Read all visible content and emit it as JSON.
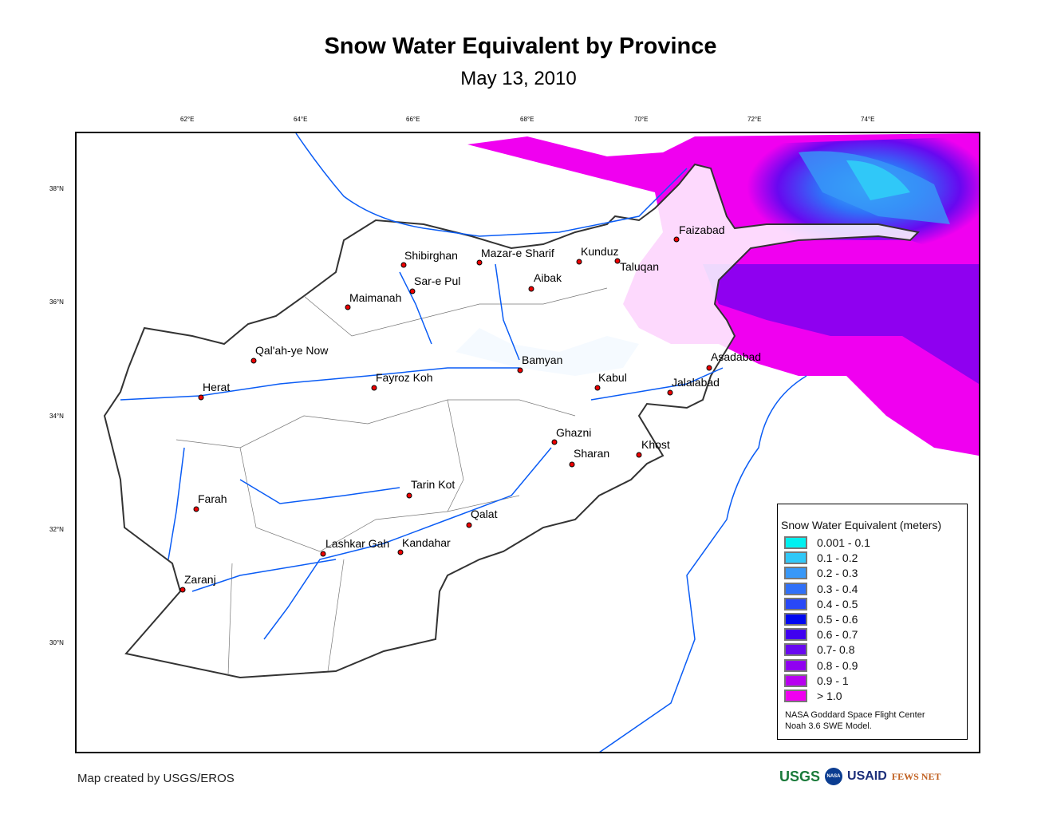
{
  "title": "Snow Water Equivalent by Province",
  "subtitle": "May 13, 2010",
  "lon_ticks": [
    "62°E",
    "64°E",
    "66°E",
    "68°E",
    "70°E",
    "72°E",
    "74°E"
  ],
  "lat_ticks": [
    "38°N",
    "36°N",
    "34°N",
    "32°N",
    "30°N"
  ],
  "cities": [
    "Shibirghan",
    "Mazar-e Sharif",
    "Kunduz",
    "Taluqan",
    "Faizabad",
    "Sar-e Pul",
    "Aibak",
    "Maimanah",
    "Qal'ah-ye Now",
    "Herat",
    "Fayroz Koh",
    "Bamyan",
    "Kabul",
    "Asadabad",
    "Jalalabad",
    "Ghazni",
    "Sharan",
    "Khost",
    "Tarin Kot",
    "Farah",
    "Qalat",
    "Lashkar Gah",
    "Kandahar",
    "Zaranj"
  ],
  "legend": {
    "title": "Snow Water Equivalent (meters)",
    "items": [
      {
        "label": "0.001 - 0.1",
        "color": "#00f0f0"
      },
      {
        "label": "0.1 - 0.2",
        "color": "#30c8f8"
      },
      {
        "label": "0.2 - 0.3",
        "color": "#3898f8"
      },
      {
        "label": "0.3 - 0.4",
        "color": "#3070f8"
      },
      {
        "label": "0.4 - 0.5",
        "color": "#2848f8"
      },
      {
        "label": "0.5 - 0.6",
        "color": "#0008f0"
      },
      {
        "label": "0.6 - 0.7",
        "color": "#4000f0"
      },
      {
        "label": "0.7- 0.8",
        "color": "#6808f0"
      },
      {
        "label": "0.8 - 0.9",
        "color": "#9000f0"
      },
      {
        "label": "0.9 - 1",
        "color": "#b800f0"
      },
      {
        "label": "> 1.0",
        "color": "#f000f0"
      }
    ],
    "credit1": "NASA Goddard Space Flight Center",
    "credit2": "Noah 3.6 SWE Model."
  },
  "footer": "Map created by USGS/EROS",
  "logos": {
    "usgs": "USGS",
    "nasa": "NASA",
    "usaid": "USAID",
    "fews": "FEWS NET"
  }
}
